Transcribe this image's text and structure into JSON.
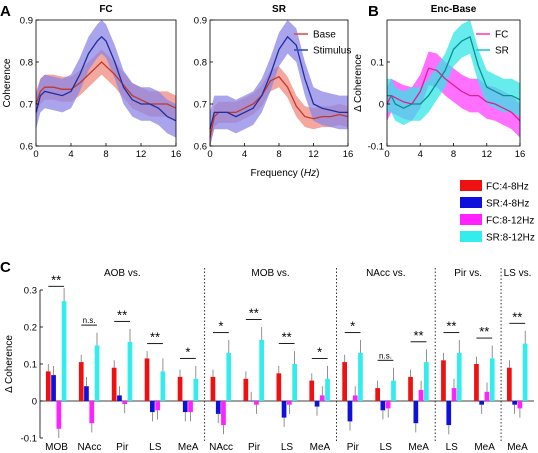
{
  "panel_letters": [
    "A",
    "B",
    "C"
  ],
  "x_common_label": "Frequency (Hz)",
  "colors": {
    "base_line": "#c0392b",
    "base_fill": "#f08a7e",
    "stim_line": "#1f2f9c",
    "stim_fill": "#8c86e6",
    "fc_line": "#e0208f",
    "fc_fill": "#ff40ff",
    "sr_line": "#0a8f8f",
    "sr_fill": "#33e6e6",
    "bar_fc4": "#ee1111",
    "bar_sr4": "#1010dd",
    "bar_fc8": "#ff22ff",
    "bar_sr8": "#33ecec"
  },
  "chart_data": [
    {
      "type": "line",
      "title": "FC",
      "ylabel": "Coherence",
      "xlim": [
        0,
        16
      ],
      "ylim": [
        0.6,
        0.9
      ],
      "xticks": [
        "0",
        "4",
        "8",
        "12",
        "16"
      ],
      "yticks": [
        "0.6",
        "0.7",
        "0.8",
        "0.9"
      ],
      "x": [
        0,
        0.5,
        1,
        2,
        3,
        4,
        5,
        6,
        7,
        7.5,
        8,
        9,
        10,
        11,
        12,
        13,
        14,
        15,
        16
      ],
      "series": [
        {
          "name": "Base",
          "values": [
            0.7,
            0.73,
            0.74,
            0.74,
            0.735,
            0.735,
            0.75,
            0.77,
            0.79,
            0.8,
            0.79,
            0.77,
            0.745,
            0.72,
            0.71,
            0.7,
            0.7,
            0.7,
            0.69
          ],
          "band": 0.03
        },
        {
          "name": "Stimulus",
          "values": [
            0.68,
            0.72,
            0.73,
            0.725,
            0.72,
            0.73,
            0.77,
            0.82,
            0.85,
            0.86,
            0.85,
            0.8,
            0.74,
            0.71,
            0.7,
            0.7,
            0.69,
            0.67,
            0.66
          ],
          "band": 0.04
        }
      ]
    },
    {
      "type": "line",
      "title": "SR",
      "xlim": [
        0,
        16
      ],
      "ylim": [
        0.6,
        0.9
      ],
      "xticks": [
        "0",
        "4",
        "8",
        "12",
        "16"
      ],
      "yticks": [
        "0.6",
        "0.7",
        "0.8",
        "0.9"
      ],
      "legend": [
        "Base",
        "Stimulus"
      ],
      "x": [
        0,
        0.5,
        1,
        2,
        3,
        4,
        5,
        6,
        7,
        8,
        9,
        10,
        11,
        12,
        13,
        14,
        15,
        16
      ],
      "series": [
        {
          "name": "Base",
          "values": [
            0.62,
            0.67,
            0.68,
            0.68,
            0.68,
            0.69,
            0.7,
            0.72,
            0.755,
            0.765,
            0.74,
            0.695,
            0.67,
            0.665,
            0.67,
            0.67,
            0.675,
            0.67
          ],
          "band": 0.025
        },
        {
          "name": "Stimulus",
          "values": [
            0.64,
            0.68,
            0.68,
            0.68,
            0.67,
            0.68,
            0.69,
            0.72,
            0.77,
            0.83,
            0.86,
            0.84,
            0.76,
            0.7,
            0.69,
            0.685,
            0.68,
            0.68
          ],
          "band": 0.04
        }
      ]
    },
    {
      "type": "line",
      "title": "Enc-Base",
      "ylabel": "Δ Coherence",
      "xlim": [
        0,
        16
      ],
      "ylim": [
        -0.1,
        0.2
      ],
      "xticks": [
        "0",
        "4",
        "8",
        "12",
        "16"
      ],
      "yticks": [
        "-0.1",
        "0",
        "0.1"
      ],
      "legend": [
        "FC",
        "SR"
      ],
      "x": [
        0,
        0.5,
        1,
        2,
        3,
        4,
        5,
        6,
        7,
        8,
        9,
        10,
        11,
        12,
        13,
        14,
        15,
        16
      ],
      "series": [
        {
          "name": "FC",
          "values": [
            0.0,
            0.02,
            0.015,
            0.005,
            0.0,
            0.03,
            0.085,
            0.08,
            0.06,
            0.045,
            0.03,
            0.02,
            0.02,
            0.005,
            0.0,
            -0.01,
            -0.02,
            -0.04
          ],
          "band": 0.04
        },
        {
          "name": "SR",
          "values": [
            0.02,
            0.02,
            0.0,
            -0.01,
            0.0,
            0.0,
            0.02,
            0.05,
            0.08,
            0.13,
            0.15,
            0.16,
            0.09,
            0.04,
            0.03,
            0.02,
            0.02,
            0.01
          ],
          "band": 0.04
        }
      ]
    },
    {
      "type": "bar",
      "ylabel": "Δ Coherence",
      "ylim": [
        -0.1,
        0.3
      ],
      "yticks": [
        "-0.1",
        "0",
        "0.1",
        "0.2",
        "0.3"
      ],
      "legend": [
        "FC:4-8Hz",
        "SR:4-8Hz",
        "FC:8-12Hz",
        "SR:8-12Hz"
      ],
      "groups": [
        {
          "label": "AOB vs.",
          "categories": [
            "MOB",
            "NAcc",
            "Pir",
            "LS",
            "MeA"
          ],
          "values": [
            [
              0.08,
              0.07,
              -0.075,
              0.27
            ],
            [
              0.105,
              0.04,
              -0.06,
              0.15
            ],
            [
              0.09,
              0.015,
              -0.008,
              0.16
            ],
            [
              0.115,
              -0.03,
              -0.025,
              0.08
            ],
            [
              0.065,
              -0.03,
              -0.03,
              0.06
            ]
          ],
          "sig": [
            "**",
            "n.s.",
            "**",
            "**",
            "*"
          ]
        },
        {
          "label": "MOB vs.",
          "categories": [
            "NAcc",
            "Pir",
            "LS",
            "MeA"
          ],
          "values": [
            [
              0.065,
              -0.035,
              -0.065,
              0.13
            ],
            [
              0.06,
              0.0,
              -0.01,
              0.165
            ],
            [
              0.075,
              -0.045,
              -0.01,
              0.1
            ],
            [
              0.055,
              -0.015,
              0.015,
              0.06
            ]
          ],
          "sig": [
            "*",
            "**",
            "**",
            "*"
          ]
        },
        {
          "label": "NAcc vs.",
          "categories": [
            "Pir",
            "LS",
            "MeA"
          ],
          "values": [
            [
              0.105,
              -0.055,
              0.015,
              0.13
            ],
            [
              0.035,
              -0.025,
              -0.02,
              0.055
            ],
            [
              0.065,
              -0.06,
              0.03,
              0.105
            ]
          ],
          "sig": [
            "*",
            "n.s.",
            "**"
          ]
        },
        {
          "label": "Pir vs.",
          "categories": [
            "LS",
            "MeA"
          ],
          "values": [
            [
              0.11,
              -0.065,
              0.035,
              0.13
            ],
            [
              0.1,
              -0.01,
              0.025,
              0.115
            ]
          ],
          "sig": [
            "**",
            "**"
          ]
        },
        {
          "label": "LS vs.",
          "categories": [
            "MeA"
          ],
          "values": [
            [
              0.09,
              -0.01,
              -0.02,
              0.155
            ]
          ],
          "sig": [
            "**"
          ]
        }
      ],
      "error": [
        0.02,
        0.025,
        0.025,
        0.035
      ]
    }
  ]
}
